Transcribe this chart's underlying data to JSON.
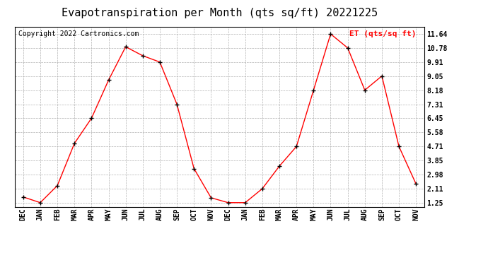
{
  "title": "Evapotranspiration per Month (qts sq/ft) 20221225",
  "copyright": "Copyright 2022 Cartronics.com",
  "legend_label": "ET (qts/sq ft)",
  "x_labels": [
    "DEC",
    "JAN",
    "FEB",
    "MAR",
    "APR",
    "MAY",
    "JUN",
    "JUL",
    "AUG",
    "SEP",
    "OCT",
    "NOV",
    "DEC",
    "JAN",
    "FEB",
    "MAR",
    "APR",
    "MAY",
    "JUN",
    "JUL",
    "AUG",
    "SEP",
    "OCT",
    "NOV"
  ],
  "y_values": [
    1.6,
    1.25,
    2.3,
    4.9,
    6.45,
    8.8,
    10.85,
    10.3,
    9.91,
    7.31,
    3.35,
    1.55,
    1.25,
    1.25,
    2.11,
    3.5,
    4.71,
    8.18,
    11.64,
    10.78,
    8.18,
    9.05,
    4.71,
    2.4
  ],
  "y_ticks": [
    1.25,
    2.11,
    2.98,
    3.85,
    4.71,
    5.58,
    6.45,
    7.31,
    8.18,
    9.05,
    9.91,
    10.78,
    11.64
  ],
  "ylim": [
    1.0,
    12.1
  ],
  "line_color": "red",
  "marker_color": "black",
  "grid_color": "#aaaaaa",
  "background_color": "white",
  "title_fontsize": 11,
  "copyright_fontsize": 7,
  "legend_fontsize": 8,
  "tick_fontsize": 7,
  "legend_color": "red"
}
